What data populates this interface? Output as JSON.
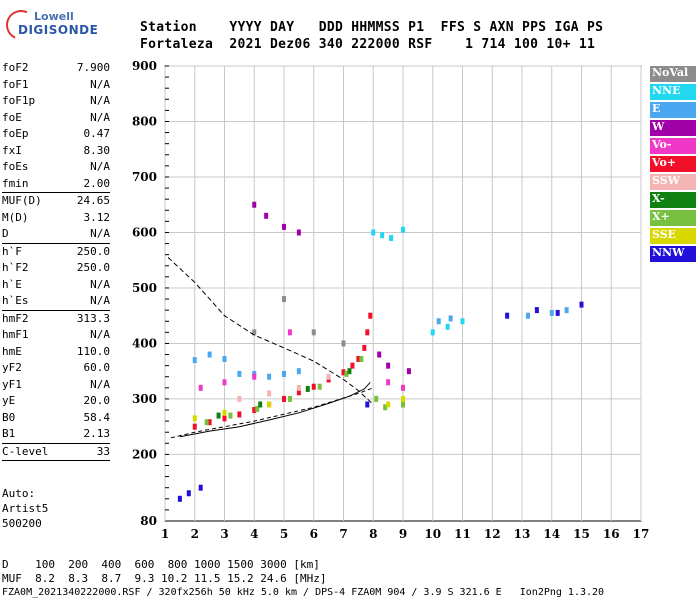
{
  "logo": {
    "line1": "Lowell",
    "line2": "DIGISONDE"
  },
  "header": {
    "row1": "Station    YYYY DAY   DDD HHMMSS P1  FFS S AXN PPS IGA PS",
    "row2": "Fortaleza  2021 Dez06 340 222000 RSF    1 714 100 10+ 11"
  },
  "params": [
    {
      "k": "foF2",
      "v": "7.900"
    },
    {
      "k": "foF1",
      "v": "N/A"
    },
    {
      "k": "foF1p",
      "v": "N/A"
    },
    {
      "k": "foE",
      "v": "N/A"
    },
    {
      "k": "foEp",
      "v": "0.47"
    },
    {
      "k": "fxI",
      "v": "8.30"
    },
    {
      "k": "foEs",
      "v": "N/A"
    },
    {
      "k": "fmin",
      "v": "2.00"
    },
    {
      "sep": true
    },
    {
      "k": "MUF(D)",
      "v": "24.65"
    },
    {
      "k": "M(D)",
      "v": "3.12"
    },
    {
      "k": "D",
      "v": "N/A"
    },
    {
      "sep": true
    },
    {
      "k": "h`F",
      "v": "250.0"
    },
    {
      "k": "h`F2",
      "v": "250.0"
    },
    {
      "k": "h`E",
      "v": "N/A"
    },
    {
      "k": "h`Es",
      "v": "N/A"
    },
    {
      "sep": true
    },
    {
      "k": "hmF2",
      "v": "313.3"
    },
    {
      "k": "hmF1",
      "v": "N/A"
    },
    {
      "k": "hmE",
      "v": "110.0"
    },
    {
      "k": "yF2",
      "v": "60.0"
    },
    {
      "k": "yF1",
      "v": "N/A"
    },
    {
      "k": "yE",
      "v": "20.0"
    },
    {
      "k": "B0",
      "v": "58.4"
    },
    {
      "k": "B1",
      "v": "2.13"
    },
    {
      "sep": true
    },
    {
      "k": "C-level",
      "v": "33"
    },
    {
      "sep": true
    }
  ],
  "auto": {
    "line1": "Auto:",
    "line2": "Artist5",
    "line3": "500200"
  },
  "legend": [
    {
      "label": "NoVal",
      "color": "#8c8c8c"
    },
    {
      "label": "NNE",
      "color": "#22d8f0"
    },
    {
      "label": "E",
      "color": "#49a8f0"
    },
    {
      "label": "W",
      "color": "#a000a8"
    },
    {
      "label": "Vo-",
      "color": "#f038c8"
    },
    {
      "label": "Vo+",
      "color": "#f0102a"
    },
    {
      "label": "SSW",
      "color": "#f4b4b4"
    },
    {
      "label": "X-",
      "color": "#108010"
    },
    {
      "label": "X+",
      "color": "#78c040"
    },
    {
      "label": "SSE",
      "color": "#d8d800"
    },
    {
      "label": "NNW",
      "color": "#2010d8"
    }
  ],
  "footer": {
    "d_row": "D    100  200  400  600  800 1000 1500 3000 [km]",
    "muf_row": "MUF  8.2  8.3  8.7  9.3 10.2 11.5 15.2 24.6 [MHz]",
    "info_row": "FZA0M_2021340222000.RSF / 320fx256h 50 kHz 5.0 km / DPS-4 FZA0M 904 / 3.9 S 321.6 E   Ion2Png 1.3.20"
  },
  "chart_data": {
    "type": "scatter",
    "x_ticks": [
      "1",
      "2",
      "3",
      "4",
      "5",
      "6",
      "7",
      "8",
      "9",
      "10",
      "11",
      "12",
      "13",
      "14",
      "15",
      "16",
      "17"
    ],
    "y_ticks": [
      "80",
      "200",
      "300",
      "400",
      "500",
      "600",
      "700",
      "800",
      "900"
    ],
    "xlim": [
      1,
      17
    ],
    "ylim": [
      80,
      900
    ],
    "grid": true,
    "series": [
      {
        "name": "Vo+",
        "color": "#f0102a",
        "points": [
          [
            2.0,
            250
          ],
          [
            2.5,
            258
          ],
          [
            3.0,
            265
          ],
          [
            3.5,
            272
          ],
          [
            4.0,
            280
          ],
          [
            4.5,
            290
          ],
          [
            5.0,
            300
          ],
          [
            5.5,
            312
          ],
          [
            6.0,
            322
          ],
          [
            6.5,
            335
          ],
          [
            7.0,
            348
          ],
          [
            7.3,
            360
          ],
          [
            7.5,
            372
          ],
          [
            7.7,
            392
          ],
          [
            7.8,
            420
          ],
          [
            7.9,
            450
          ]
        ]
      },
      {
        "name": "X+",
        "color": "#78c040",
        "points": [
          [
            2.4,
            258
          ],
          [
            3.2,
            270
          ],
          [
            4.1,
            282
          ],
          [
            5.2,
            300
          ],
          [
            6.2,
            322
          ],
          [
            7.1,
            345
          ],
          [
            7.6,
            372
          ],
          [
            8.1,
            300
          ],
          [
            8.4,
            285
          ],
          [
            9.0,
            290
          ]
        ]
      },
      {
        "name": "E",
        "color": "#49a8f0",
        "points": [
          [
            2.0,
            370
          ],
          [
            2.5,
            380
          ],
          [
            3.0,
            372
          ],
          [
            3.5,
            345
          ],
          [
            4.0,
            345
          ],
          [
            4.5,
            340
          ],
          [
            5.0,
            345
          ],
          [
            5.5,
            350
          ],
          [
            10.2,
            440
          ],
          [
            10.6,
            445
          ],
          [
            13.2,
            450
          ],
          [
            14.0,
            455
          ],
          [
            14.5,
            460
          ]
        ]
      },
      {
        "name": "NNE",
        "color": "#22d8f0",
        "points": [
          [
            8.0,
            600
          ],
          [
            8.3,
            595
          ],
          [
            8.6,
            590
          ],
          [
            9.0,
            605
          ],
          [
            10.0,
            420
          ],
          [
            10.5,
            430
          ],
          [
            11.0,
            440
          ]
        ]
      },
      {
        "name": "W",
        "color": "#a000a8",
        "points": [
          [
            4.0,
            650
          ],
          [
            4.4,
            630
          ],
          [
            5.0,
            610
          ],
          [
            5.5,
            600
          ],
          [
            8.2,
            380
          ],
          [
            8.5,
            360
          ],
          [
            9.2,
            350
          ]
        ]
      },
      {
        "name": "Vo-",
        "color": "#f038c8",
        "points": [
          [
            2.2,
            320
          ],
          [
            3.0,
            330
          ],
          [
            4.0,
            340
          ],
          [
            5.2,
            420
          ],
          [
            8.5,
            330
          ],
          [
            9.0,
            320
          ]
        ]
      },
      {
        "name": "SSW",
        "color": "#f4b4b4",
        "points": [
          [
            3.5,
            300
          ],
          [
            4.5,
            310
          ],
          [
            5.5,
            320
          ],
          [
            6.5,
            340
          ]
        ]
      },
      {
        "name": "X-",
        "color": "#108010",
        "points": [
          [
            2.8,
            270
          ],
          [
            4.2,
            290
          ],
          [
            5.8,
            318
          ],
          [
            7.2,
            350
          ]
        ]
      },
      {
        "name": "SSE",
        "color": "#d8d800",
        "points": [
          [
            2.0,
            265
          ],
          [
            3.0,
            275
          ],
          [
            4.5,
            290
          ],
          [
            8.5,
            290
          ],
          [
            9.0,
            300
          ]
        ]
      },
      {
        "name": "NNW",
        "color": "#2010d8",
        "points": [
          [
            1.5,
            120
          ],
          [
            1.8,
            130
          ],
          [
            2.2,
            140
          ],
          [
            7.8,
            290
          ],
          [
            12.5,
            450
          ],
          [
            13.5,
            460
          ],
          [
            14.2,
            455
          ],
          [
            15.0,
            470
          ]
        ]
      },
      {
        "name": "NoVal",
        "color": "#8c8c8c",
        "points": [
          [
            4.0,
            420
          ],
          [
            5.0,
            480
          ],
          [
            6.0,
            420
          ],
          [
            7.0,
            400
          ]
        ]
      }
    ],
    "profile_line": [
      [
        1.5,
        232
      ],
      [
        2.5,
        242
      ],
      [
        3.5,
        250
      ],
      [
        4.5,
        262
      ],
      [
        5.5,
        275
      ],
      [
        6.5,
        292
      ],
      [
        7.2,
        305
      ],
      [
        7.7,
        318
      ],
      [
        7.9,
        330
      ]
    ],
    "dashed_line": [
      [
        1.1,
        555
      ],
      [
        2.0,
        510
      ],
      [
        3.0,
        450
      ],
      [
        4.0,
        415
      ],
      [
        5.0,
        392
      ],
      [
        6.0,
        368
      ],
      [
        7.0,
        335
      ],
      [
        7.5,
        315
      ],
      [
        8.0,
        290
      ]
    ],
    "trace_dashed2": [
      [
        1.2,
        230
      ],
      [
        2.0,
        240
      ],
      [
        4.0,
        260
      ],
      [
        6.0,
        285
      ],
      [
        7.5,
        310
      ],
      [
        8.0,
        320
      ]
    ]
  }
}
